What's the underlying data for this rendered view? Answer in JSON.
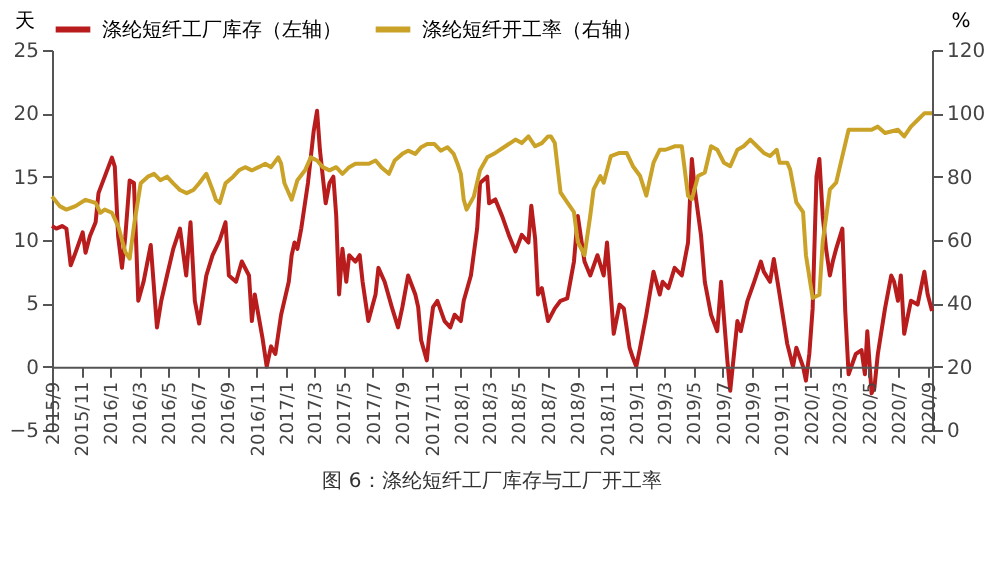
{
  "chart_data": {
    "type": "line",
    "ylabel": "天",
    "y2label": "%",
    "legend": "top",
    "grid": false,
    "line_style": "solid",
    "marker": "none",
    "annotations": [
      "图 6：涤纶短纤工厂库存与工厂开工率"
    ],
    "xlim": [
      "2015-09-01",
      "2020-09-10"
    ],
    "xticks": [
      {
        "value": "2015-09-01",
        "label": "2015/9"
      },
      {
        "value": "2015-11-01",
        "label": "2015/11"
      },
      {
        "value": "2016-01-01",
        "label": "2016/1"
      },
      {
        "value": "2016-03-01",
        "label": "2016/3"
      },
      {
        "value": "2016-05-01",
        "label": "2016/5"
      },
      {
        "value": "2016-07-01",
        "label": "2016/7"
      },
      {
        "value": "2016-09-01",
        "label": "2016/9"
      },
      {
        "value": "2016-11-01",
        "label": "2016/11"
      },
      {
        "value": "2017-01-01",
        "label": "2017/1"
      },
      {
        "value": "2017-03-01",
        "label": "2017/3"
      },
      {
        "value": "2017-05-01",
        "label": "2017/5"
      },
      {
        "value": "2017-07-01",
        "label": "2017/7"
      },
      {
        "value": "2017-09-01",
        "label": "2017/9"
      },
      {
        "value": "2017-11-01",
        "label": "2017/11"
      },
      {
        "value": "2018-01-01",
        "label": "2018/1"
      },
      {
        "value": "2018-03-01",
        "label": "2018/3"
      },
      {
        "value": "2018-05-01",
        "label": "2018/5"
      },
      {
        "value": "2018-07-01",
        "label": "2018/7"
      },
      {
        "value": "2018-09-01",
        "label": "2018/9"
      },
      {
        "value": "2018-11-01",
        "label": "2018/11"
      },
      {
        "value": "2019-01-01",
        "label": "2019/1"
      },
      {
        "value": "2019-03-01",
        "label": "2019/3"
      },
      {
        "value": "2019-05-01",
        "label": "2019/5"
      },
      {
        "value": "2019-07-01",
        "label": "2019/7"
      },
      {
        "value": "2019-09-01",
        "label": "2019/9"
      },
      {
        "value": "2019-11-01",
        "label": "2019/11"
      },
      {
        "value": "2020-01-01",
        "label": "2020/1"
      },
      {
        "value": "2020-03-01",
        "label": "2020/3"
      },
      {
        "value": "2020-05-01",
        "label": "2020/5"
      },
      {
        "value": "2020-07-01",
        "label": "2020/7"
      },
      {
        "value": "2020-09-01",
        "label": "2020/9"
      }
    ],
    "ylim": [
      -5,
      25
    ],
    "yticks": [
      -5,
      0,
      5,
      10,
      15,
      20,
      25
    ],
    "y2lim": [
      0,
      120
    ],
    "y2ticks": [
      0,
      20,
      40,
      60,
      80,
      100,
      120
    ],
    "series": [
      {
        "name": "涤纶短纤工厂库存（左轴）",
        "color": "#b81c1c",
        "axis": "y",
        "x": [
          "2015-09-01",
          "2015-09-10",
          "2015-09-22",
          "2015-10-01",
          "2015-10-10",
          "2015-10-20",
          "2015-11-04",
          "2015-11-10",
          "2015-11-19",
          "2015-12-01",
          "2015-12-07",
          "2015-12-20",
          "2016-01-04",
          "2016-01-10",
          "2016-01-17",
          "2016-01-25",
          "2016-02-01",
          "2016-02-10",
          "2016-02-19",
          "2016-02-28",
          "2016-03-10",
          "2016-03-25",
          "2016-04-07",
          "2016-04-16",
          "2016-04-28",
          "2016-05-11",
          "2016-05-25",
          "2016-06-07",
          "2016-06-16",
          "2016-06-25",
          "2016-07-04",
          "2016-07-19",
          "2016-08-01",
          "2016-08-16",
          "2016-08-28",
          "2016-09-04",
          "2016-09-19",
          "2016-10-01",
          "2016-10-16",
          "2016-10-22",
          "2016-10-28",
          "2016-11-13",
          "2016-11-22",
          "2016-12-01",
          "2016-12-10",
          "2016-12-22",
          "2017-01-07",
          "2017-01-13",
          "2017-01-19",
          "2017-01-25",
          "2017-02-02",
          "2017-02-16",
          "2017-02-28",
          "2017-03-07",
          "2017-03-13",
          "2017-03-19",
          "2017-03-25",
          "2017-04-02",
          "2017-04-10",
          "2017-04-16",
          "2017-04-22",
          "2017-04-29",
          "2017-05-07",
          "2017-05-13",
          "2017-05-26",
          "2017-06-04",
          "2017-06-10",
          "2017-06-22",
          "2017-07-07",
          "2017-07-13",
          "2017-07-26",
          "2017-08-10",
          "2017-08-23",
          "2017-09-01",
          "2017-09-13",
          "2017-09-28",
          "2017-10-04",
          "2017-10-10",
          "2017-10-22",
          "2017-10-26",
          "2017-11-04",
          "2017-11-13",
          "2017-11-28",
          "2017-12-10",
          "2017-12-19",
          "2018-01-01",
          "2018-01-07",
          "2018-01-22",
          "2018-02-04",
          "2018-02-10",
          "2018-02-25",
          "2018-03-01",
          "2018-03-14",
          "2018-03-28",
          "2018-04-11",
          "2018-04-25",
          "2018-05-08",
          "2018-05-22",
          "2018-05-28",
          "2018-06-05",
          "2018-06-11",
          "2018-06-19",
          "2018-07-02",
          "2018-07-16",
          "2018-07-28",
          "2018-08-11",
          "2018-08-25",
          "2018-09-02",
          "2018-09-16",
          "2018-09-28",
          "2018-10-13",
          "2018-10-26",
          "2018-11-02",
          "2018-11-16",
          "2018-11-28",
          "2018-12-07",
          "2018-12-19",
          "2018-12-26",
          "2019-01-02",
          "2019-01-10",
          "2019-01-23",
          "2019-02-07",
          "2019-02-20",
          "2019-02-26",
          "2019-03-10",
          "2019-03-23",
          "2019-04-07",
          "2019-04-20",
          "2019-04-28",
          "2019-05-04",
          "2019-05-17",
          "2019-05-25",
          "2019-06-07",
          "2019-06-20",
          "2019-06-28",
          "2019-07-11",
          "2019-07-17",
          "2019-08-01",
          "2019-08-08",
          "2019-08-22",
          "2019-09-05",
          "2019-09-19",
          "2019-09-25",
          "2019-10-08",
          "2019-10-16",
          "2019-10-28",
          "2019-11-13",
          "2019-11-25",
          "2019-12-02",
          "2019-12-16",
          "2019-12-22",
          "2019-12-29",
          "2020-01-05",
          "2020-01-13",
          "2020-01-19",
          "2020-01-26",
          "2020-02-02",
          "2020-02-10",
          "2020-02-16",
          "2020-02-23",
          "2020-03-07",
          "2020-03-13",
          "2020-03-20",
          "2020-04-04",
          "2020-04-16",
          "2020-04-23",
          "2020-04-28",
          "2020-05-07",
          "2020-05-13",
          "2020-05-20",
          "2020-06-04",
          "2020-06-17",
          "2020-06-23",
          "2020-07-01",
          "2020-07-07",
          "2020-07-14",
          "2020-07-28",
          "2020-08-11",
          "2020-08-25",
          "2020-09-01",
          "2020-09-10"
        ],
        "values": [
          11.1,
          10.9,
          11.1,
          10.9,
          8.0,
          9.0,
          10.6,
          9.0,
          10.3,
          11.4,
          13.7,
          15.0,
          16.5,
          15.8,
          10.3,
          7.8,
          10.3,
          14.7,
          14.5,
          5.2,
          6.7,
          9.6,
          3.1,
          5.2,
          7.2,
          9.3,
          10.9,
          7.2,
          11.4,
          5.2,
          3.4,
          7.2,
          8.8,
          10.0,
          11.4,
          7.2,
          6.7,
          8.3,
          7.2,
          3.6,
          5.7,
          2.3,
          0.0,
          1.6,
          1.0,
          4.1,
          6.7,
          8.8,
          9.8,
          9.3,
          10.9,
          14.5,
          18.6,
          20.2,
          17.1,
          15.0,
          12.9,
          14.5,
          15.0,
          11.9,
          5.7,
          9.3,
          6.7,
          8.8,
          8.3,
          8.8,
          6.7,
          3.6,
          5.7,
          7.8,
          6.7,
          4.7,
          3.1,
          4.7,
          7.2,
          5.7,
          4.7,
          2.1,
          0.5,
          2.1,
          4.7,
          5.2,
          3.6,
          3.1,
          4.1,
          3.6,
          5.2,
          7.2,
          10.9,
          14.5,
          15.0,
          12.9,
          13.2,
          11.9,
          10.4,
          9.1,
          10.4,
          9.8,
          12.7,
          10.1,
          5.7,
          6.2,
          3.6,
          4.6,
          5.2,
          5.4,
          8.3,
          11.9,
          8.3,
          7.2,
          8.8,
          7.2,
          9.8,
          2.6,
          4.9,
          4.6,
          1.5,
          0.7,
          0.0,
          1.5,
          4.1,
          7.5,
          5.7,
          6.7,
          6.2,
          7.8,
          7.2,
          9.8,
          16.4,
          14.0,
          10.4,
          6.7,
          4.1,
          2.8,
          6.7,
          0.5,
          -1.9,
          3.6,
          2.8,
          5.2,
          6.7,
          8.3,
          7.5,
          6.7,
          8.5,
          5.7,
          1.8,
          0.0,
          1.5,
          0.0,
          -1.1,
          1.0,
          4.6,
          15.0,
          16.4,
          11.9,
          9.3,
          7.2,
          8.3,
          9.3,
          10.9,
          4.4,
          -0.6,
          1.0,
          1.3,
          -0.6,
          2.8,
          -2.1,
          -1.6,
          1.0,
          4.6,
          7.2,
          6.7,
          5.2,
          7.2,
          2.6,
          5.2,
          4.9,
          7.5,
          5.7,
          4.4
        ]
      },
      {
        "name": "涤纶短纤开工率（右轴）",
        "color": "#c9a227",
        "axis": "y2",
        "x": [
          "2015-09-01",
          "2015-09-17",
          "2015-10-01",
          "2015-10-20",
          "2015-11-10",
          "2015-12-01",
          "2015-12-11",
          "2015-12-20",
          "2016-01-04",
          "2016-01-17",
          "2016-02-01",
          "2016-02-10",
          "2016-02-20",
          "2016-03-04",
          "2016-03-19",
          "2016-04-01",
          "2016-04-14",
          "2016-04-28",
          "2016-05-11",
          "2016-05-25",
          "2016-06-08",
          "2016-06-22",
          "2016-07-04",
          "2016-07-19",
          "2016-08-01",
          "2016-08-08",
          "2016-08-16",
          "2016-08-28",
          "2016-09-13",
          "2016-09-25",
          "2016-10-08",
          "2016-10-22",
          "2016-11-05",
          "2016-11-19",
          "2016-12-01",
          "2016-12-16",
          "2016-12-22",
          "2016-12-29",
          "2017-01-13",
          "2017-01-19",
          "2017-01-25",
          "2017-02-10",
          "2017-02-22",
          "2017-03-07",
          "2017-03-19",
          "2017-04-02",
          "2017-04-16",
          "2017-04-29",
          "2017-05-13",
          "2017-05-26",
          "2017-06-10",
          "2017-06-23",
          "2017-07-07",
          "2017-07-19",
          "2017-08-04",
          "2017-08-16",
          "2017-09-01",
          "2017-09-13",
          "2017-09-28",
          "2017-10-10",
          "2017-10-23",
          "2017-11-07",
          "2017-11-20",
          "2017-12-04",
          "2017-12-17",
          "2017-12-25",
          "2018-01-01",
          "2018-01-07",
          "2018-01-13",
          "2018-01-28",
          "2018-02-10",
          "2018-02-25",
          "2018-03-14",
          "2018-04-04",
          "2018-04-25",
          "2018-05-08",
          "2018-05-22",
          "2018-06-05",
          "2018-06-19",
          "2018-07-02",
          "2018-07-08",
          "2018-07-16",
          "2018-07-28",
          "2018-08-11",
          "2018-08-25",
          "2018-09-02",
          "2018-09-16",
          "2018-09-28",
          "2018-10-05",
          "2018-10-19",
          "2018-10-26",
          "2018-11-10",
          "2018-11-28",
          "2018-12-13",
          "2018-12-26",
          "2019-01-10",
          "2019-01-23",
          "2019-02-07",
          "2019-02-20",
          "2019-03-04",
          "2019-03-23",
          "2019-04-07",
          "2019-04-20",
          "2019-04-28",
          "2019-05-11",
          "2019-05-25",
          "2019-06-07",
          "2019-06-20",
          "2019-07-04",
          "2019-07-17",
          "2019-08-01",
          "2019-08-14",
          "2019-08-28",
          "2019-09-11",
          "2019-09-25",
          "2019-10-08",
          "2019-10-22",
          "2019-10-28",
          "2019-11-13",
          "2019-11-19",
          "2019-12-02",
          "2019-12-16",
          "2019-12-22",
          "2020-01-05",
          "2020-01-19",
          "2020-01-26",
          "2020-02-10",
          "2020-02-23",
          "2020-03-07",
          "2020-03-20",
          "2020-04-10",
          "2020-05-07",
          "2020-05-20",
          "2020-06-04",
          "2020-07-01",
          "2020-07-14",
          "2020-07-28",
          "2020-08-11",
          "2020-08-25",
          "2020-09-10"
        ],
        "values": [
          73.7,
          70.7,
          69.6,
          70.7,
          72.7,
          71.7,
          68.6,
          69.6,
          68.6,
          64.4,
          56.2,
          54.1,
          65.5,
          77.9,
          80.0,
          80.9,
          78.9,
          80.0,
          77.9,
          75.8,
          74.8,
          75.8,
          77.9,
          80.9,
          75.8,
          72.7,
          71.7,
          77.9,
          80.0,
          82.0,
          83.0,
          82.0,
          83.0,
          84.1,
          83.0,
          86.1,
          84.1,
          77.9,
          72.7,
          75.8,
          78.9,
          82.0,
          86.1,
          85.1,
          83.0,
          82.0,
          83.0,
          80.9,
          83.0,
          84.1,
          84.1,
          84.1,
          85.1,
          83.0,
          80.9,
          85.1,
          87.2,
          88.2,
          87.2,
          89.3,
          90.3,
          90.3,
          88.2,
          89.3,
          87.2,
          84.1,
          80.9,
          72.7,
          69.6,
          73.7,
          82.0,
          86.1,
          87.5,
          89.6,
          91.7,
          90.6,
          92.7,
          89.6,
          90.6,
          92.7,
          92.7,
          90.6,
          75.0,
          71.9,
          68.8,
          59.4,
          55.2,
          67.7,
          76.0,
          80.2,
          78.1,
          86.5,
          87.5,
          87.5,
          83.3,
          80.2,
          74.0,
          84.4,
          88.5,
          88.5,
          89.6,
          89.6,
          74.0,
          72.9,
          80.2,
          81.3,
          89.6,
          88.5,
          84.4,
          83.3,
          88.5,
          89.6,
          91.7,
          89.6,
          87.5,
          86.5,
          88.5,
          84.4,
          84.4,
          82.3,
          71.9,
          68.8,
          55.2,
          41.7,
          42.7,
          59.4,
          76.0,
          78.1,
          86.5,
          94.8,
          94.8,
          94.8,
          95.8,
          93.8,
          94.8,
          92.7,
          95.8,
          97.9,
          100.0,
          100.0
        ]
      }
    ]
  }
}
